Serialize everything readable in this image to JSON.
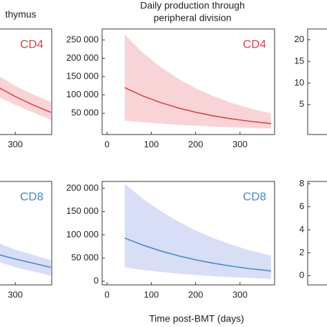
{
  "chart_data": [
    {
      "type": "line",
      "title": "thymus",
      "label": "CD4",
      "label_color": "#d9434b",
      "xlim": [
        -45,
        382
      ],
      "ylim": [
        0,
        100
      ],
      "xticks": [
        300
      ],
      "yticks": [],
      "series": [
        {
          "color": "#d9434b",
          "band_color": "#f8c9cc",
          "x": [
            265,
            300,
            340,
            380
          ],
          "values": [
            44,
            36,
            28,
            21
          ],
          "lower": [
            35,
            28,
            21,
            14
          ],
          "upper": [
            55,
            46,
            38,
            31
          ]
        }
      ]
    },
    {
      "type": "line",
      "title": [
        "Daily production through",
        "peripheral division"
      ],
      "label": "CD4",
      "label_color": "#d9434b",
      "xlim": [
        -11,
        378
      ],
      "ylim": [
        -8000,
        280000
      ],
      "xticks": [
        0,
        100,
        200,
        300
      ],
      "yticks": [
        {
          "value": 50000,
          "label": "50 000"
        },
        {
          "value": 100000,
          "label": "100 000"
        },
        {
          "value": 150000,
          "label": "150 000"
        },
        {
          "value": 200000,
          "label": "200 000"
        },
        {
          "value": 250000,
          "label": "250 000"
        }
      ],
      "series": [
        {
          "color": "#d9434b",
          "band_color": "#f8c9cc",
          "x": [
            40,
            80,
            120,
            160,
            200,
            240,
            280,
            320,
            370
          ],
          "values": [
            120000,
            97700,
            79600,
            64800,
            52800,
            43000,
            35000,
            28500,
            22000
          ],
          "lower": [
            30000,
            25600,
            21800,
            18600,
            15900,
            13500,
            11500,
            9800,
            8000
          ],
          "upper": [
            265000,
            216000,
            177000,
            145000,
            118000,
            96500,
            78800,
            64400,
            50000
          ]
        }
      ]
    },
    {
      "type": "line",
      "xlim": [
        -11,
        378
      ],
      "ylim": [
        -1.9,
        22.5
      ],
      "xticks": [],
      "yticks": [
        5,
        10,
        15,
        20
      ],
      "series": []
    },
    {
      "type": "line",
      "label": "CD8",
      "label_color": "#4a86c8",
      "xlim": [
        -45,
        382
      ],
      "ylim": [
        0,
        100
      ],
      "xticks": [
        300
      ],
      "yticks": [],
      "series": [
        {
          "color": "#4a86c8",
          "band_color": "#cdd6f3",
          "x": [
            265,
            300,
            340,
            380
          ],
          "values": [
            29,
            25,
            21,
            17
          ],
          "lower": [
            22,
            17,
            13,
            9
          ],
          "upper": [
            40,
            34,
            29,
            24
          ]
        }
      ]
    },
    {
      "type": "line",
      "label": "CD8",
      "label_color": "#4a86c8",
      "xlabel": "Time post-BMT (days)",
      "xlim": [
        -11,
        378
      ],
      "ylim": [
        -8000,
        215000
      ],
      "xticks": [
        0,
        100,
        200,
        300
      ],
      "yticks": [
        0,
        {
          "value": 50000,
          "label": "50 000"
        },
        {
          "value": 100000,
          "label": "100 000"
        },
        {
          "value": 150000,
          "label": "150 000"
        },
        {
          "value": 200000,
          "label": "200 000"
        }
      ],
      "series": [
        {
          "color": "#4a86c8",
          "band_color": "#cdd6f3",
          "x": [
            40,
            80,
            120,
            160,
            200,
            240,
            280,
            320,
            370
          ],
          "values": [
            93000,
            78000,
            65500,
            55000,
            46100,
            38700,
            32500,
            27300,
            22000
          ],
          "lower": [
            30000,
            24500,
            20000,
            16300,
            13300,
            10800,
            8800,
            7200,
            5000
          ],
          "upper": [
            210000,
            178000,
            152000,
            129000,
            109000,
            93000,
            79000,
            67000,
            55000
          ]
        }
      ]
    },
    {
      "type": "line",
      "xlim": [
        -11,
        378
      ],
      "ylim": [
        -0.8,
        8.2
      ],
      "xticks": [],
      "yticks": [
        0,
        2,
        4,
        6,
        8
      ],
      "series": []
    }
  ]
}
